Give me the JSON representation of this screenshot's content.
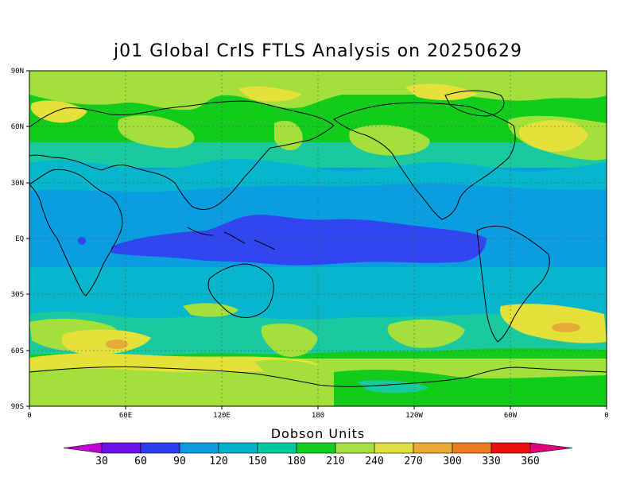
{
  "title": "j01 Global CrIS FTLS Analysis on 20250629",
  "lat_labels": [
    "90N",
    "60N",
    "30N",
    "EQ",
    "30S",
    "60S",
    "90S"
  ],
  "lon_labels": [
    "0",
    "60E",
    "120E",
    "180",
    "120W",
    "60W",
    "0"
  ],
  "colorbar": {
    "title": "Dobson Units",
    "ticks": [
      "30",
      "60",
      "90",
      "120",
      "150",
      "180",
      "210",
      "240",
      "270",
      "300",
      "330",
      "360"
    ],
    "colors": [
      "#8f00d6",
      "#6c10e6",
      "#2d3ef0",
      "#0a9be0",
      "#00b3c8",
      "#00c8a0",
      "#10cf20",
      "#a8e040",
      "#e2e040",
      "#e8aa30",
      "#f07a20",
      "#e81010",
      "#e00070"
    ],
    "under_color": "#c000d0",
    "over_color": "#e0007a"
  },
  "colors": {
    "green": "#12cc1c",
    "light_green": "#a4e03c",
    "yellow": "#e4e23a",
    "orange": "#e6ab36",
    "teal": "#1ac9a0",
    "cyan": "#07b6cc",
    "blue": "#0a9ee0",
    "dark_blue": "#3146ee"
  }
}
